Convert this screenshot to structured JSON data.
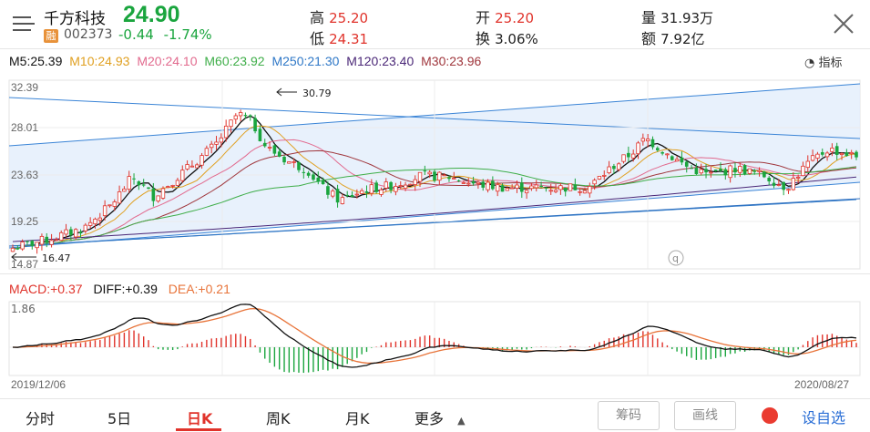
{
  "header": {
    "name": "千方科技",
    "price": "24.90",
    "rong": "融",
    "code": "002373",
    "change": "-0.44",
    "change_pct": "-1.74%",
    "stats": [
      {
        "label": "高",
        "value": "25.20",
        "tone": "red"
      },
      {
        "label": "低",
        "value": "24.31",
        "tone": "red"
      },
      {
        "label": "开",
        "value": "25.20",
        "tone": "red"
      },
      {
        "label": "换",
        "value": "3.06%",
        "tone": "dark"
      },
      {
        "label": "量",
        "value": "31.93万",
        "tone": "dark"
      },
      {
        "label": "额",
        "value": "7.92亿",
        "tone": "dark"
      }
    ],
    "colors": {
      "up": "#e0332b",
      "down": "#1aa53e"
    }
  },
  "ma_legend": [
    {
      "text": "M5:25.39",
      "color": "#111111"
    },
    {
      "text": "M10:24.93",
      "color": "#e0a021"
    },
    {
      "text": "M20:24.10",
      "color": "#e26a8e"
    },
    {
      "text": "M60:23.92",
      "color": "#3fae49"
    },
    {
      "text": "M250:21.30",
      "color": "#2f78c7"
    },
    {
      "text": "M120:23.40",
      "color": "#4a2777"
    },
    {
      "text": "M30:23.96",
      "color": "#a0373d"
    }
  ],
  "indicator_label": "指标",
  "kline_axis": {
    "ticks": [
      "32.39",
      "28.01",
      "23.63",
      "19.25",
      "14.87"
    ],
    "ylim": [
      14.87,
      32.39
    ],
    "max_marker": "30.79",
    "min_marker": "16.47",
    "start_date": "2019/12/06",
    "end_date": "2020/08/27"
  },
  "macd": {
    "macd_label": "MACD:+0.37",
    "diff_label": "DIFF:+0.39",
    "dea_label": "DEA:+0.21",
    "top_tick": "1.86"
  },
  "tabs": [
    "分时",
    "5日",
    "日K",
    "周K",
    "月K",
    "更多"
  ],
  "active_tab": "日K",
  "buttons": {
    "chips": "筹码",
    "draw": "画线",
    "favorite": "设自选"
  }
}
